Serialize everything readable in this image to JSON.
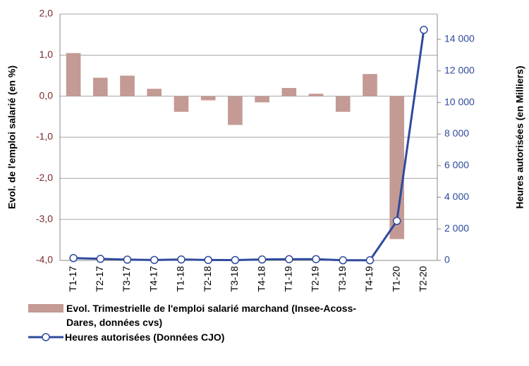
{
  "chart_data": {
    "type": "bar_line",
    "categories": [
      "T1-17",
      "T2-17",
      "T3-17",
      "T4-17",
      "T1-18",
      "T2-18",
      "T3-18",
      "T4-18",
      "T1-19",
      "T2-19",
      "T3-19",
      "T4-19",
      "T1-20",
      "T2-20"
    ],
    "series": [
      {
        "name": "Evol. Trimestrielle de l'emploi salarié marchand (Insee-Acoss-Dares, données cvs)",
        "type": "bar",
        "color": "#c49a94",
        "values": [
          1.05,
          0.45,
          0.5,
          0.18,
          -0.38,
          -0.1,
          -0.7,
          -0.15,
          0.2,
          0.06,
          -0.38,
          0.54,
          -3.48,
          null
        ]
      },
      {
        "name": "Heures autorisées (Données CJO)",
        "type": "line",
        "axis": "y2",
        "color": "#2e4a9c",
        "values": [
          150,
          100,
          50,
          30,
          60,
          30,
          20,
          60,
          80,
          80,
          10,
          10,
          2500,
          14600
        ]
      }
    ],
    "ylabel": "Evol. de l'emploi salarié (en %)",
    "y2label": "Heures autorisées (en Milliers)",
    "ylim": [
      -4,
      2
    ],
    "yticks": [
      {
        "value": -4,
        "label": "-4,0"
      },
      {
        "value": -3,
        "label": "-3,0"
      },
      {
        "value": -2,
        "label": "-2,0"
      },
      {
        "value": -1,
        "label": "-1,0"
      },
      {
        "value": 0,
        "label": "0,0"
      },
      {
        "value": 1,
        "label": "1,0"
      },
      {
        "value": 2,
        "label": "2,0"
      }
    ],
    "y2lim": [
      0,
      15600
    ],
    "y2ticks": [
      0,
      {
        "value": 2000,
        "label": "2 000"
      },
      {
        "value": 4000,
        "label": "4 000"
      },
      {
        "value": 6000,
        "label": "6 000"
      },
      {
        "value": 8000,
        "label": "8 000"
      },
      {
        "value": 10000,
        "label": "10 000"
      },
      {
        "value": 12000,
        "label": "12 000"
      },
      {
        "value": 14000,
        "label": "14 000"
      }
    ],
    "grid": true
  }
}
